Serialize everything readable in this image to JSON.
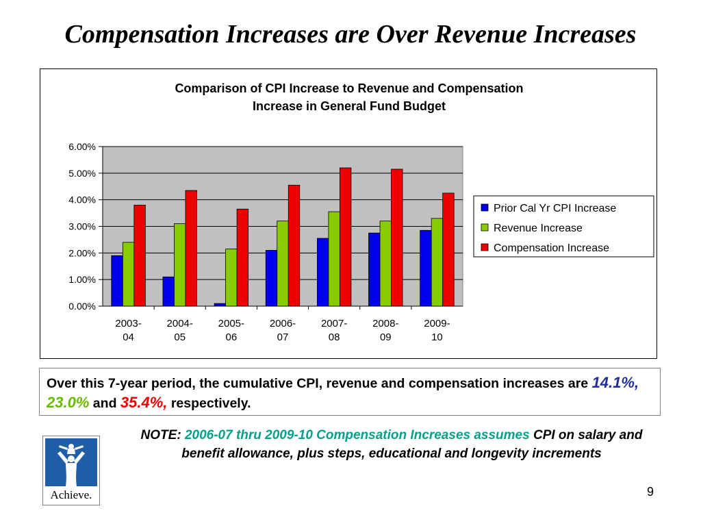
{
  "slide": {
    "title": "Compensation Increases are Over Revenue Increases",
    "page_number": "9"
  },
  "summary": {
    "text_before": "Over this 7-year period, the cumulative CPI, revenue and compensation increases are ",
    "cpi_value": "14.1%,",
    "revenue_value": "23.0%",
    "text_and": " and ",
    "comp_value": "35.4%,",
    "text_after": " respectively."
  },
  "note": {
    "label": "NOTE:",
    "highlight": "2006-07 thru 2009-10 Compensation Increases assumes",
    "rest": " CPI on salary and benefit allowance, plus steps, educational and longevity increments"
  },
  "logo": {
    "text": "Achieve.",
    "icon": "person-lifting-child-icon"
  },
  "chart_data": {
    "type": "bar",
    "title_lines": [
      "Comparison of CPI Increase to Revenue and Compensation",
      "Increase in General Fund Budget"
    ],
    "categories": [
      [
        "2003-",
        "04"
      ],
      [
        "2004-",
        "05"
      ],
      [
        "2005-",
        "06"
      ],
      [
        "2006-",
        "07"
      ],
      [
        "2007-",
        "08"
      ],
      [
        "2008-",
        "09"
      ],
      [
        "2009-",
        "10"
      ]
    ],
    "series": [
      {
        "name": "Prior Cal Yr CPI Increase",
        "color": "#0000ee",
        "values": [
          1.9,
          1.1,
          0.1,
          2.1,
          2.55,
          2.75,
          2.85
        ]
      },
      {
        "name": "Revenue Increase",
        "color": "#88cc00",
        "values": [
          2.4,
          3.1,
          2.15,
          3.2,
          3.55,
          3.2,
          3.3
        ]
      },
      {
        "name": "Compensation Increase",
        "color": "#ee0000",
        "values": [
          3.8,
          4.35,
          3.65,
          4.55,
          5.2,
          5.15,
          4.25
        ]
      }
    ],
    "yticks": [
      "0.00%",
      "1.00%",
      "2.00%",
      "3.00%",
      "4.00%",
      "5.00%",
      "6.00%"
    ],
    "ylim": [
      0,
      6
    ],
    "grid": true,
    "plot_background": "#c0c0c0",
    "legend_position": "right"
  }
}
